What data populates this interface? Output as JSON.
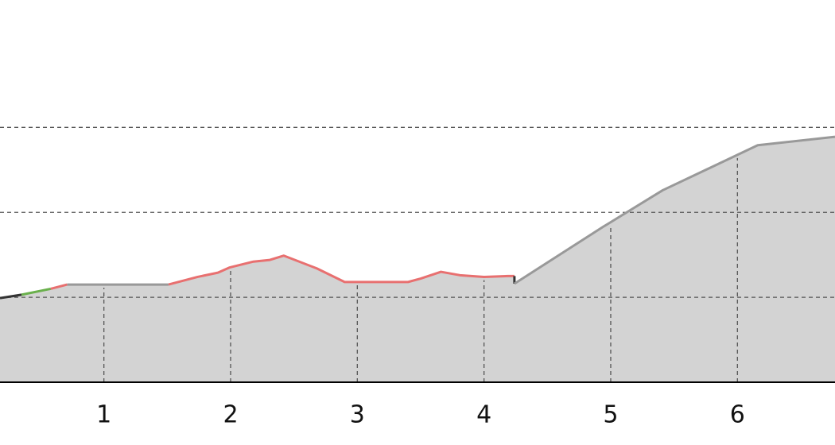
{
  "chart_data": {
    "type": "area",
    "x": [
      0.18,
      0.35,
      0.58,
      0.71,
      1.51,
      1.74,
      1.9,
      1.99,
      2.18,
      2.31,
      2.42,
      2.68,
      2.9,
      3.4,
      3.5,
      3.66,
      3.81,
      4.0,
      4.19,
      4.24,
      4.24,
      4.94,
      5.41,
      6.16,
      6.77
    ],
    "series": [
      {
        "color": "#333333",
        "values": [
          0.99,
          1.03,
          null,
          null,
          null,
          null,
          null,
          null,
          null,
          null,
          null,
          null,
          null,
          null,
          null,
          null,
          null,
          null,
          null,
          null,
          null,
          null,
          null,
          null,
          null
        ]
      },
      {
        "color": "#6ab04c",
        "values": [
          null,
          1.03,
          1.1,
          null,
          null,
          null,
          null,
          null,
          null,
          null,
          null,
          null,
          null,
          null,
          null,
          null,
          null,
          null,
          null,
          null,
          null,
          null,
          null,
          null,
          null
        ]
      },
      {
        "color": "#e87070",
        "values": [
          null,
          null,
          1.1,
          1.15,
          null,
          null,
          null,
          null,
          null,
          null,
          null,
          null,
          null,
          null,
          null,
          null,
          null,
          null,
          null,
          null,
          null,
          null,
          null,
          null,
          null
        ]
      },
      {
        "color": "#999999",
        "values": [
          null,
          null,
          null,
          1.15,
          1.15,
          null,
          null,
          null,
          null,
          null,
          null,
          null,
          null,
          null,
          null,
          null,
          null,
          null,
          null,
          null,
          null,
          null,
          null,
          null,
          null
        ]
      },
      {
        "color": "#e87070",
        "values": [
          null,
          null,
          null,
          null,
          1.15,
          1.24,
          1.29,
          1.35,
          1.42,
          1.44,
          1.49,
          1.34,
          1.18,
          1.18,
          1.22,
          1.3,
          1.26,
          1.24,
          1.25,
          1.25,
          null,
          null,
          null,
          null,
          null
        ]
      },
      {
        "color": "#333333",
        "values": [
          null,
          null,
          null,
          null,
          null,
          null,
          null,
          null,
          null,
          null,
          null,
          null,
          null,
          null,
          null,
          null,
          null,
          null,
          null,
          1.25,
          1.16,
          null,
          null,
          null,
          null
        ]
      },
      {
        "color": "#999999",
        "values": [
          null,
          null,
          null,
          null,
          null,
          null,
          null,
          null,
          null,
          null,
          null,
          null,
          null,
          null,
          null,
          null,
          null,
          null,
          null,
          null,
          1.16,
          1.83,
          2.26,
          2.79,
          2.89
        ]
      }
    ],
    "area_color": "#d3d3d3",
    "xlim": [
      0.18,
      6.77
    ],
    "xticks": [
      1,
      2,
      3,
      4,
      5,
      6
    ],
    "ylim": [
      0,
      4.5
    ],
    "yticks": [
      1,
      2,
      3
    ],
    "show_ytick_labels": false,
    "grid": true
  }
}
